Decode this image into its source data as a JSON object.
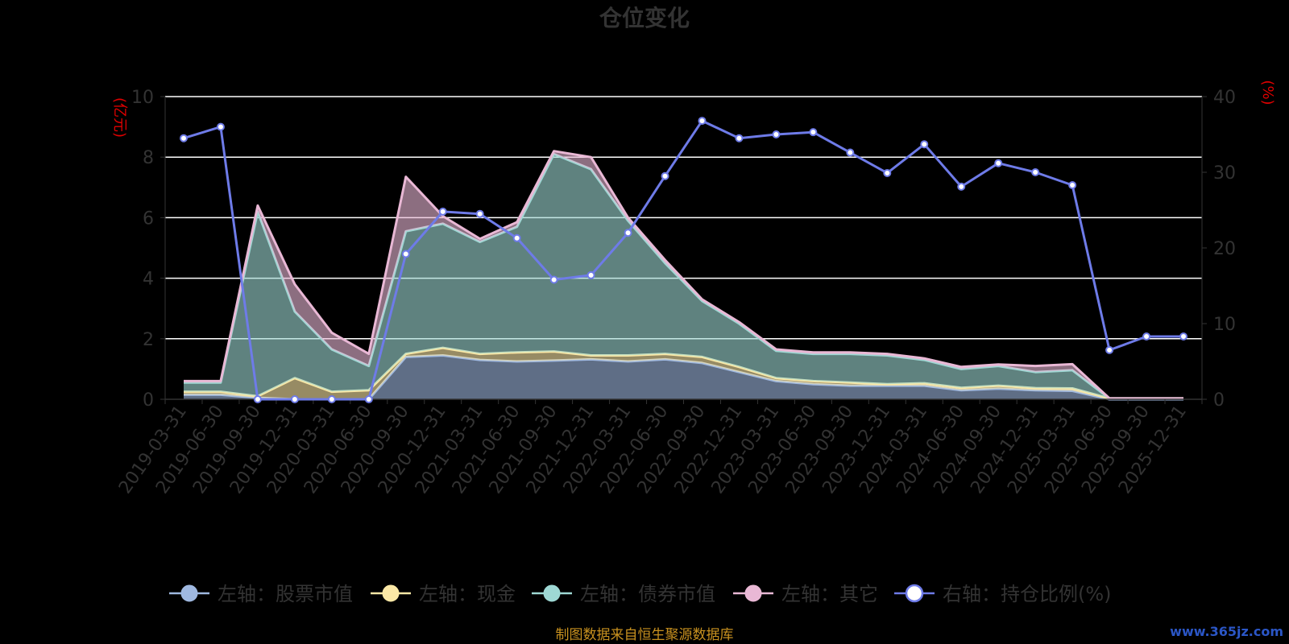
{
  "chart_data": {
    "type": "area",
    "title": "仓位变化",
    "left_axis_unit": "(亿元)",
    "right_axis_unit": "(%)",
    "ylim_left": [
      0,
      10
    ],
    "ylim_right": [
      0,
      40
    ],
    "left_ticks": [
      "0",
      "2",
      "4",
      "6",
      "8",
      "10"
    ],
    "right_ticks": [
      "0",
      "10",
      "20",
      "30",
      "40"
    ],
    "grid": true,
    "stacked": true,
    "legend_position": "bottom",
    "x_labels": [
      "2019-03-31",
      "2019-06-30",
      "2019-09-30",
      "2019-12-31",
      "2020-03-31",
      "2020-06-30",
      "2020-09-30",
      "2020-12-31",
      "2021-03-31",
      "2021-06-30",
      "2021-09-30",
      "2021-12-31",
      "2022-03-31",
      "2022-06-30",
      "2022-09-30",
      "2022-12-31",
      "2023-03-31",
      "2023-06-30",
      "2023-09-30",
      "2023-12-31",
      "2024-03-31",
      "2024-06-30",
      "2024-09-30",
      "2024-12-31",
      "2025-03-31",
      "2025-06-30",
      "2025-09-30",
      "2025-12-31"
    ],
    "series": [
      {
        "name": "左轴：股票市值",
        "axis": "left",
        "color": "#9fb8e0",
        "values": [
          0.15,
          0.15,
          0.05,
          0.0,
          0.0,
          0.0,
          1.4,
          1.45,
          1.3,
          1.25,
          1.28,
          1.32,
          1.25,
          1.32,
          1.2,
          0.9,
          0.6,
          0.5,
          0.45,
          0.45,
          0.45,
          0.3,
          0.35,
          0.3,
          0.28,
          0.0,
          0.0,
          0.0
        ]
      },
      {
        "name": "左轴：现金",
        "axis": "left",
        "color": "#fbe8a6",
        "values": [
          0.1,
          0.1,
          0.05,
          0.7,
          0.25,
          0.3,
          0.1,
          0.25,
          0.2,
          0.3,
          0.3,
          0.13,
          0.2,
          0.18,
          0.2,
          0.17,
          0.1,
          0.1,
          0.1,
          0.05,
          0.08,
          0.08,
          0.1,
          0.07,
          0.08,
          0.03,
          0.03,
          0.03
        ]
      },
      {
        "name": "左轴：债券市值",
        "axis": "left",
        "color": "#9ed8d4",
        "values": [
          0.3,
          0.3,
          6.1,
          2.2,
          1.4,
          0.8,
          4.05,
          4.1,
          3.7,
          4.15,
          6.52,
          6.15,
          4.45,
          3.0,
          1.85,
          1.43,
          0.9,
          0.9,
          0.95,
          0.95,
          0.77,
          0.62,
          0.65,
          0.53,
          0.6,
          0.0,
          0.0,
          0.0
        ]
      },
      {
        "name": "左轴：其它",
        "axis": "left",
        "color": "#e9b8d5",
        "values": [
          0.05,
          0.05,
          0.2,
          0.9,
          0.55,
          0.4,
          1.8,
          0.25,
          0.1,
          0.15,
          0.1,
          0.4,
          0.1,
          0.1,
          0.05,
          0.05,
          0.05,
          0.05,
          0.05,
          0.05,
          0.05,
          0.07,
          0.05,
          0.2,
          0.2,
          0.0,
          0.0,
          0.0
        ]
      },
      {
        "name": "右轴：持仓比例(%)",
        "axis": "right",
        "color": "#6e7be8",
        "values": [
          34.5,
          36.0,
          0.0,
          0.0,
          0.0,
          0.0,
          19.2,
          24.8,
          24.5,
          21.3,
          15.8,
          16.4,
          22.0,
          29.5,
          36.8,
          34.5,
          35.0,
          35.3,
          32.6,
          29.9,
          33.7,
          28.1,
          31.2,
          30.0,
          28.3,
          6.5,
          8.3,
          8.3
        ]
      }
    ]
  },
  "footer": {
    "source": "制图数据来自恒生聚源数据库",
    "watermark": "www.365jz.com"
  }
}
